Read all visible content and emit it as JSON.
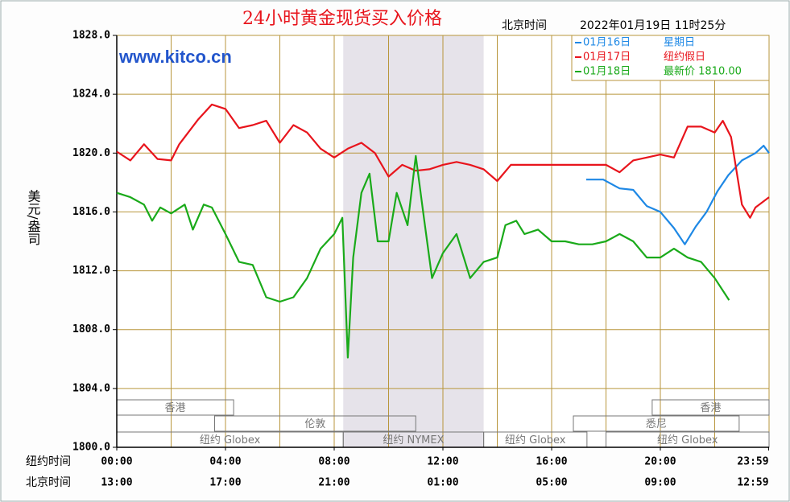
{
  "chart_data": {
    "type": "line",
    "title": "24小时黄金现货买入价格",
    "time_caption": "北京时间",
    "timestamp": "2022年01月19日 11时25分",
    "watermark": "www.kitco.cn",
    "ylabel": "美元/盎司",
    "ylim": [
      1800,
      1828
    ],
    "yticks": [
      {
        "value": 1800,
        "label": "1800.0"
      },
      {
        "value": 1804,
        "label": "1804.0"
      },
      {
        "value": 1808,
        "label": "1808.0"
      },
      {
        "value": 1812,
        "label": "1812.0"
      },
      {
        "value": 1816,
        "label": "1816.0"
      },
      {
        "value": 1820,
        "label": "1820.0"
      },
      {
        "value": 1824,
        "label": "1824.0"
      },
      {
        "value": 1828,
        "label": "1828.0"
      }
    ],
    "xlim": [
      0,
      24
    ],
    "xgrid": [
      0,
      2,
      4,
      6,
      8,
      10,
      12,
      14,
      16,
      18,
      20,
      22,
      24
    ],
    "xlabel": "纽约时间",
    "xticks": [
      {
        "value": 0,
        "label": "00:00"
      },
      {
        "value": 4,
        "label": "04:00"
      },
      {
        "value": 8,
        "label": "08:00"
      },
      {
        "value": 12,
        "label": "12:00"
      },
      {
        "value": 16,
        "label": "16:00"
      },
      {
        "value": 20,
        "label": "20:00"
      },
      {
        "value": 23.9833,
        "label": "23:59"
      }
    ],
    "xlabel_beijing": "北京时间",
    "xticks_beijing": [
      {
        "value": 0,
        "label": "13:00"
      },
      {
        "value": 4,
        "label": "17:00"
      },
      {
        "value": 8,
        "label": "21:00"
      },
      {
        "value": 12,
        "label": "01:00"
      },
      {
        "value": 16,
        "label": "05:00"
      },
      {
        "value": 20,
        "label": "09:00"
      },
      {
        "value": 23.9833,
        "label": "12:59"
      }
    ],
    "highlight_x": [
      8.333,
      13.5
    ],
    "sessions": [
      [
        {
          "label": "香港",
          "start": 0,
          "end": 4.3
        },
        {
          "label": "香港",
          "start": 19.7,
          "end": 24
        }
      ],
      [
        {
          "label": "伦敦",
          "start": 3.6,
          "end": 11
        },
        {
          "label": "悉尼",
          "start": 16.8,
          "end": 22.9
        }
      ],
      [
        {
          "label": "纽约 Globex",
          "start": 0,
          "end": 8.333
        },
        {
          "label": "纽约 NYMEX",
          "start": 8.333,
          "end": 13.5
        },
        {
          "label": "纽约 Globex",
          "start": 13.5,
          "end": 17.3
        },
        {
          "label": "纽约 Globex",
          "start": 18,
          "end": 24
        }
      ]
    ],
    "grid": true,
    "series": [
      {
        "name": "01月16日",
        "note": "星期日",
        "color": "#1e88e5",
        "x": [
          17.27,
          17.9,
          18.5,
          19,
          19.5,
          20,
          20.5,
          20.9,
          21.3,
          21.7,
          22.1,
          22.5,
          23,
          23.5,
          23.8,
          24
        ],
        "values": [
          1818.2,
          1818.2,
          1817.6,
          1817.5,
          1816.4,
          1816,
          1814.9,
          1813.8,
          1815,
          1816,
          1817.4,
          1818.5,
          1819.5,
          1820,
          1820.5,
          1820
        ]
      },
      {
        "name": "01月17日",
        "note": "纽约假日",
        "color": "#e8141c",
        "x": [
          0,
          0.5,
          1,
          1.5,
          2,
          2.3,
          3,
          3.5,
          4,
          4.5,
          5,
          5.5,
          6,
          6.5,
          7,
          7.5,
          8,
          8.5,
          9,
          9.5,
          10,
          10.5,
          11,
          11.5,
          12,
          12.5,
          13,
          13.5,
          14,
          14.5,
          18,
          18.5,
          19,
          19.5,
          20,
          20.5,
          21,
          21.5,
          22,
          22.3,
          22.6,
          23,
          23.3,
          23.5,
          24
        ],
        "values": [
          1820.1,
          1819.5,
          1820.6,
          1819.6,
          1819.5,
          1820.6,
          1822.3,
          1823.3,
          1823,
          1821.7,
          1821.9,
          1822.2,
          1820.7,
          1821.9,
          1821.4,
          1820.3,
          1819.7,
          1820.3,
          1820.7,
          1820,
          1818.4,
          1819.2,
          1818.8,
          1818.9,
          1819.2,
          1819.4,
          1819.2,
          1818.9,
          1818.1,
          1819.2,
          1819.2,
          1818.7,
          1819.5,
          1819.7,
          1819.9,
          1819.7,
          1821.8,
          1821.8,
          1821.4,
          1822.2,
          1821.1,
          1816.5,
          1815.6,
          1816.3,
          1817
        ]
      },
      {
        "name": "01月18日",
        "note": "最新价 1810.00",
        "color": "#1aaa1a",
        "x": [
          0,
          0.5,
          1,
          1.3,
          1.6,
          2,
          2.5,
          2.8,
          3.2,
          3.5,
          4,
          4.5,
          5,
          5.5,
          6,
          6.5,
          7,
          7.5,
          8,
          8.3,
          8.5,
          8.7,
          9,
          9.3,
          9.6,
          10,
          10.3,
          10.7,
          11,
          11.3,
          11.6,
          12,
          12.5,
          13,
          13.5,
          14,
          14.3,
          14.7,
          15,
          15.5,
          16,
          16.5,
          17,
          17.5,
          18,
          18.5,
          19,
          19.5,
          20,
          20.5,
          21,
          21.5,
          22,
          22.53
        ],
        "values": [
          1817.3,
          1817,
          1816.5,
          1815.4,
          1816.3,
          1815.9,
          1816.5,
          1814.8,
          1816.5,
          1816.3,
          1814.5,
          1812.6,
          1812.4,
          1810.2,
          1809.9,
          1810.2,
          1811.5,
          1813.5,
          1814.5,
          1815.6,
          1806.1,
          1812.9,
          1817.3,
          1818.6,
          1814,
          1814,
          1817.3,
          1815.1,
          1819.8,
          1815.6,
          1811.5,
          1813.2,
          1814.5,
          1811.5,
          1812.6,
          1812.9,
          1815.1,
          1815.4,
          1814.5,
          1814.8,
          1814,
          1814,
          1813.8,
          1813.8,
          1814,
          1814.5,
          1814,
          1812.9,
          1812.9,
          1813.5,
          1812.9,
          1812.6,
          1811.5,
          1810
        ]
      }
    ]
  }
}
